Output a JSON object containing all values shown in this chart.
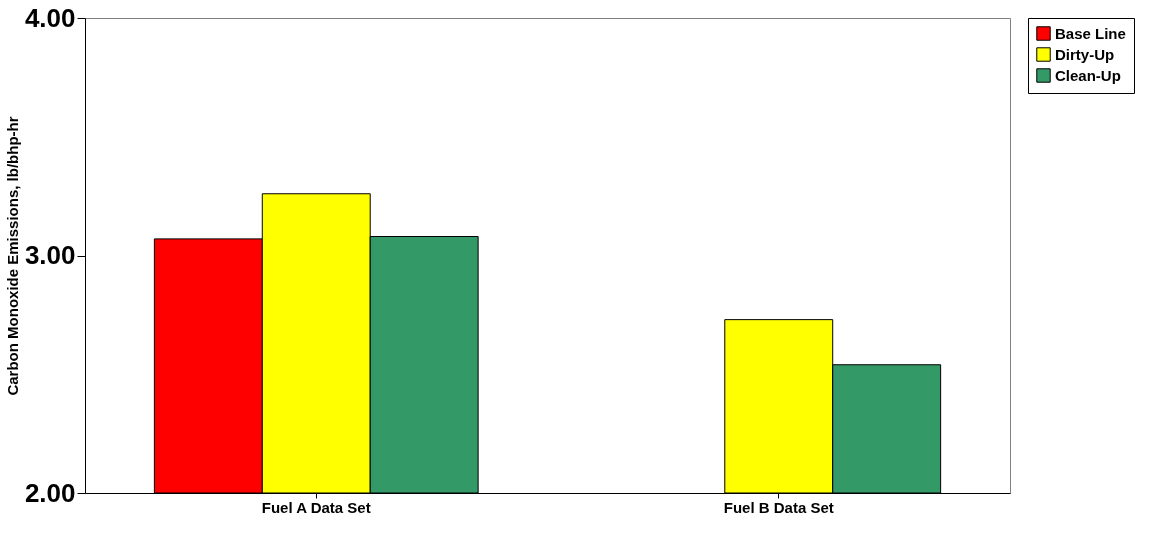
{
  "chart_data": {
    "type": "bar",
    "ylabel": "Carbon Monoxide Emissions, lb/bhp-hr",
    "categories": [
      "Fuel A Data Set",
      "Fuel B Data Set"
    ],
    "series": [
      {
        "name": "Base Line",
        "color": "#ff0000",
        "values": [
          3.07,
          null
        ]
      },
      {
        "name": "Dirty-Up",
        "color": "#ffff00",
        "values": [
          3.26,
          2.73
        ]
      },
      {
        "name": "Clean-Up",
        "color": "#339966",
        "values": [
          3.08,
          2.54
        ]
      }
    ],
    "ylim": [
      2,
      4
    ],
    "yticks": [
      {
        "value": 2,
        "label": "2.00"
      },
      {
        "value": 3,
        "label": "3.00"
      },
      {
        "value": 4,
        "label": "4.00"
      }
    ],
    "grid": false,
    "legend": "right"
  }
}
